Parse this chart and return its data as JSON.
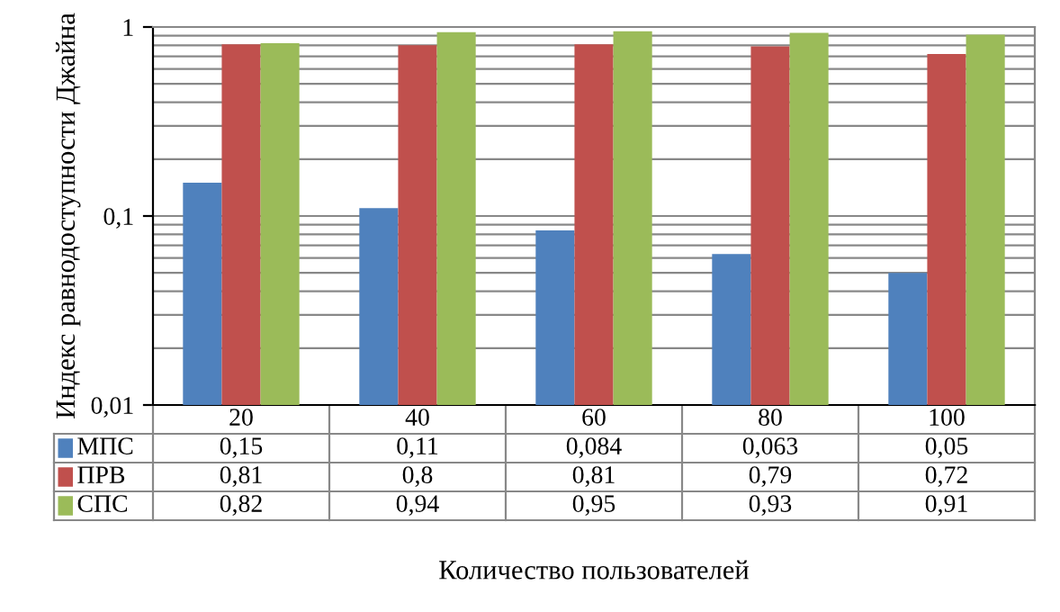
{
  "chart_data": {
    "type": "bar",
    "ylabel": "Индекс равнодоступности Джайна",
    "xlabel": "Количество пользователей",
    "categories": [
      "20",
      "40",
      "60",
      "80",
      "100"
    ],
    "series": [
      {
        "name": "МПС",
        "color": "#4f81bd",
        "values": [
          0.15,
          0.11,
          0.084,
          0.063,
          0.05
        ],
        "value_labels": [
          "0,15",
          "0,11",
          "0,084",
          "0,063",
          "0,05"
        ]
      },
      {
        "name": "ПРВ",
        "color": "#c0504d",
        "values": [
          0.81,
          0.8,
          0.81,
          0.79,
          0.72
        ],
        "value_labels": [
          "0,81",
          "0,8",
          "0,81",
          "0,79",
          "0,72"
        ]
      },
      {
        "name": "СПС",
        "color": "#9bbb59",
        "values": [
          0.82,
          0.94,
          0.95,
          0.93,
          0.91
        ],
        "value_labels": [
          "0,82",
          "0,94",
          "0,95",
          "0,93",
          "0,91"
        ]
      }
    ],
    "log": true,
    "ylim": [
      0.01,
      1
    ],
    "yticks": [
      {
        "value": 0.01,
        "label": "0,01"
      },
      {
        "value": 0.1,
        "label": "0,1"
      },
      {
        "value": 1,
        "label": "1"
      }
    ],
    "grid": "y",
    "legend": "bottom"
  }
}
